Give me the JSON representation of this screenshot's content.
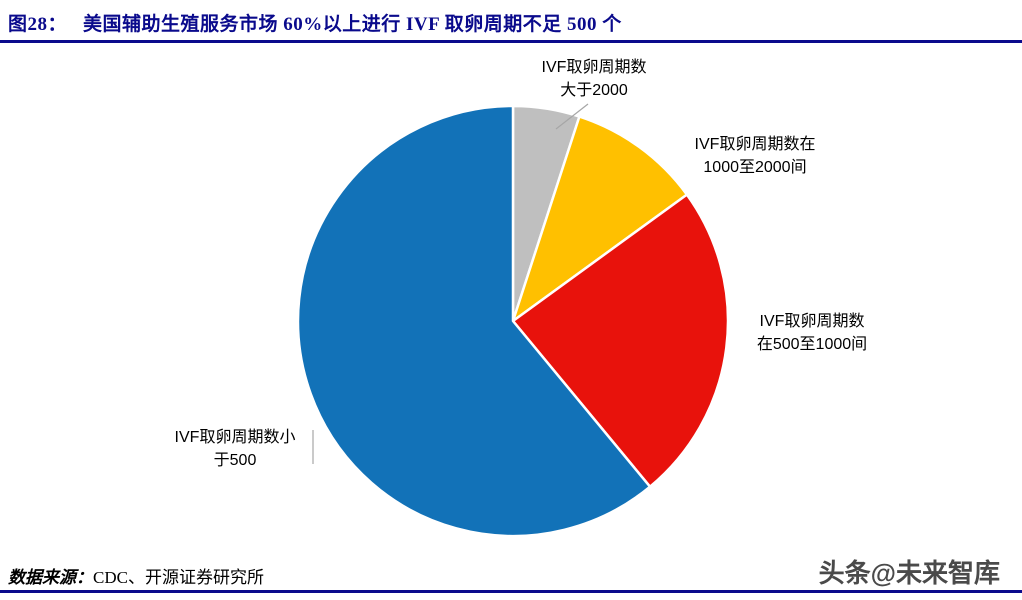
{
  "header": {
    "figure_label": "图28：",
    "title": "美国辅助生殖服务市场 60%以上进行 IVF 取卵周期不足 500 个"
  },
  "chart_data": {
    "type": "pie",
    "title": "美国辅助生殖服务市场 60%以上进行 IVF 取卵周期不足 500 个",
    "unit": "%",
    "direction": "clockwise",
    "start_angle_deg": 0,
    "legend_position": "outside-labels-with-leader-lines",
    "slices": [
      {
        "id": "gt2000",
        "label": "IVF取卵周期数大于2000",
        "label_lines": [
          "IVF取卵周期数",
          "大于2000"
        ],
        "value": 5,
        "color": "#BFBFBF"
      },
      {
        "id": "1000to2000",
        "label": "IVF取卵周期数在1000至2000间",
        "label_lines": [
          "IVF取卵周期数在",
          "1000至2000间"
        ],
        "value": 10,
        "color": "#FFC000"
      },
      {
        "id": "500to1000",
        "label": "IVF取卵周期数在500至1000间",
        "label_lines": [
          "IVF取卵周期数",
          "在500至1000间"
        ],
        "value": 24,
        "color": "#E8120C"
      },
      {
        "id": "lt500",
        "label": "IVF取卵周期数小于500",
        "label_lines": [
          "IVF取卵周期数小",
          "于500"
        ],
        "value": 61,
        "color": "#1272B8"
      }
    ]
  },
  "footer": {
    "source_label": "数据来源：",
    "source_value": "CDC、开源证券研究所",
    "watermark": "头条@未来智库"
  },
  "colors": {
    "accent_navy": "#0A0A8C",
    "label_text": "#000000",
    "watermark_gray": "#4A4A4A",
    "leader_line": "#A6A6A6"
  }
}
